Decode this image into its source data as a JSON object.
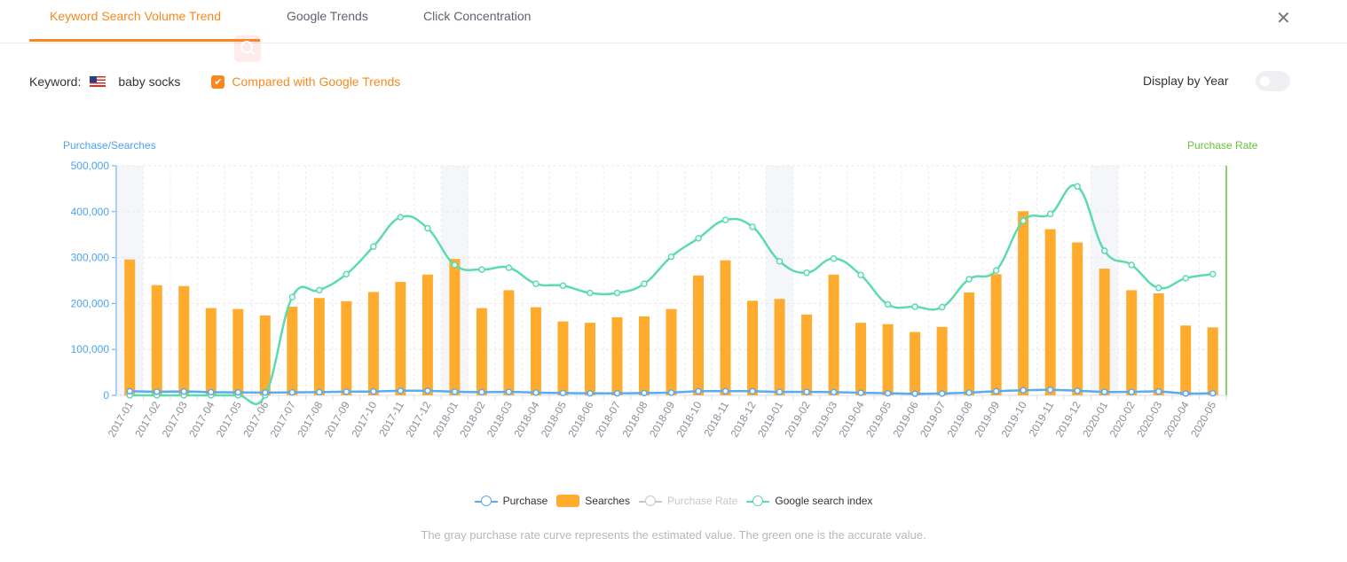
{
  "tabs": [
    {
      "label": "Keyword Search Volume Trend",
      "active": true
    },
    {
      "label": "Google Trends",
      "active": false
    },
    {
      "label": "Click Concentration",
      "active": false
    }
  ],
  "close_icon": "close-icon",
  "keyword": {
    "label": "Keyword:",
    "flag": "us-flag-icon",
    "value": "baby socks"
  },
  "compare": {
    "label": "Compared with Google Trends",
    "checked": true
  },
  "display_by_year": {
    "label": "Display by Year",
    "on": false
  },
  "colors": {
    "accent": "#f7891f",
    "purchase": "#5aabf0",
    "searches": "#ffab2e",
    "purchase_rate": "#67c23a",
    "google_index": "#5ddbb0",
    "left_axis": "#4da3f2",
    "highlight_band": "#f4f6fa"
  },
  "note": "The gray purchase rate curve represents the estimated value. The green one is the accurate value.",
  "chart_data": {
    "type": "bar",
    "title": "",
    "ylabel": "Purchase/Searches",
    "ylabel_right": "Purchase Rate",
    "ylim": [
      0,
      500000
    ],
    "yticks": [
      0,
      100000,
      200000,
      300000,
      400000,
      500000
    ],
    "ytick_labels": [
      "0",
      "100,000",
      "200,000",
      "300,000",
      "400,000",
      "500,000"
    ],
    "grid": true,
    "highlighted_categories": [
      "2017-01",
      "2018-01",
      "2019-01",
      "2020-01"
    ],
    "categories": [
      "2017-01",
      "2017-02",
      "2017-03",
      "2017-04",
      "2017-05",
      "2017-06",
      "2017-07",
      "2017-08",
      "2017-09",
      "2017-10",
      "2017-11",
      "2017-12",
      "2018-01",
      "2018-02",
      "2018-03",
      "2018-04",
      "2018-05",
      "2018-06",
      "2018-07",
      "2018-08",
      "2018-09",
      "2018-10",
      "2018-11",
      "2018-12",
      "2019-01",
      "2019-02",
      "2019-03",
      "2019-04",
      "2019-05",
      "2019-06",
      "2019-07",
      "2019-08",
      "2019-09",
      "2019-10",
      "2019-11",
      "2019-12",
      "2020-01",
      "2020-02",
      "2020-03",
      "2020-04",
      "2020-05"
    ],
    "series": [
      {
        "name": "Purchase",
        "kind": "line",
        "values": [
          9000,
          8000,
          8500,
          7000,
          6500,
          6000,
          6500,
          7000,
          8000,
          8500,
          10000,
          10000,
          8000,
          7000,
          7500,
          6000,
          5000,
          4500,
          4500,
          5000,
          6000,
          9000,
          9000,
          9000,
          7500,
          7500,
          7000,
          5500,
          4500,
          3500,
          4000,
          6000,
          9000,
          11000,
          12000,
          10000,
          7500,
          7500,
          8500,
          4000,
          4500
        ]
      },
      {
        "name": "Searches",
        "kind": "bar",
        "values": [
          296000,
          240000,
          238000,
          190000,
          188000,
          174000,
          193000,
          212000,
          205000,
          225000,
          247000,
          263000,
          297000,
          190000,
          229000,
          192000,
          161000,
          158000,
          170000,
          172000,
          188000,
          261000,
          294000,
          206000,
          210000,
          176000,
          263000,
          158000,
          155000,
          138000,
          149000,
          224000,
          264000,
          401000,
          362000,
          333000,
          276000,
          229000,
          222000,
          152000,
          148000
        ]
      },
      {
        "name": "Purchase Rate",
        "kind": "line",
        "visible": false,
        "values": []
      },
      {
        "name": "Google search index",
        "kind": "line",
        "values": [
          0,
          0,
          0,
          0,
          0,
          0,
          214000,
          229000,
          264000,
          324000,
          388000,
          364000,
          284000,
          274000,
          278000,
          243000,
          239000,
          223000,
          223000,
          243000,
          302000,
          342000,
          382000,
          367000,
          292000,
          267000,
          298000,
          262000,
          198000,
          193000,
          192000,
          253000,
          272000,
          380000,
          395000,
          455000,
          315000,
          284000,
          234000,
          255000,
          264000
        ]
      }
    ],
    "legend": [
      "Purchase",
      "Searches",
      "Purchase Rate",
      "Google search index"
    ],
    "legend_position": "bottom-center"
  }
}
